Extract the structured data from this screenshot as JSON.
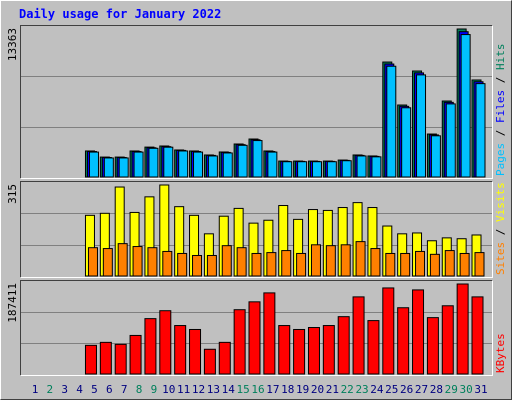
{
  "chart_data": {
    "type": "bar",
    "title": "Daily usage for January 2022",
    "categories": [
      "1",
      "2",
      "3",
      "4",
      "5",
      "6",
      "7",
      "8",
      "9",
      "10",
      "11",
      "12",
      "13",
      "14",
      "15",
      "16",
      "17",
      "18",
      "19",
      "20",
      "21",
      "22",
      "23",
      "24",
      "25",
      "26",
      "27",
      "28",
      "29",
      "30",
      "31"
    ],
    "highlight_categories": [
      "2",
      "8",
      "9",
      "15",
      "16",
      "22",
      "23",
      "29",
      "30"
    ],
    "highlight_color": "#00805c",
    "category_color": "#000080",
    "legend_separator": " / ",
    "panels": [
      {
        "ylim": [
          0,
          13363
        ],
        "yticks": [
          13363
        ],
        "series": [
          {
            "name": "Pages",
            "color": "#00c0ff",
            "values": [
              0,
              0,
              0,
              0,
              2250,
              1720,
              1720,
              2250,
              2590,
              2690,
              2350,
              2250,
              1900,
              2170,
              2860,
              3290,
              2250,
              1380,
              1380,
              1380,
              1380,
              1470,
              1900,
              1820,
              10000,
              6250,
              9220,
              3720,
              6600,
              12860,
              8430
            ]
          },
          {
            "name": "Files",
            "color": "#0000ff",
            "values": [
              0,
              0,
              0,
              0,
              2300,
              1760,
              1760,
              2300,
              2640,
              2740,
              2400,
              2300,
              1950,
              2220,
              2920,
              3360,
              2300,
              1410,
              1410,
              1410,
              1410,
              1500,
              1950,
              1860,
              10200,
              6380,
              9400,
              3800,
              6740,
              13120,
              8600
            ]
          },
          {
            "name": "Hits",
            "color": "#00805c",
            "values": [
              0,
              0,
              0,
              0,
              2350,
              1800,
              1800,
              2350,
              2700,
              2800,
              2440,
              2350,
              1990,
              2260,
              2980,
              3430,
              2350,
              1440,
              1440,
              1440,
              1440,
              1530,
              1990,
              1900,
              10380,
              6500,
              9570,
              3880,
              6860,
              13363,
              8760
            ]
          }
        ]
      },
      {
        "ylim": [
          0,
          315
        ],
        "yticks": [
          315
        ],
        "series": [
          {
            "name": "Sites",
            "color": "#ff8000",
            "values": [
              0,
              0,
              0,
              0,
              98,
              95,
              112,
              102,
              98,
              85,
              78,
              71,
              71,
              105,
              98,
              78,
              81,
              88,
              78,
              108,
              105,
              108,
              119,
              95,
              78,
              78,
              85,
              75,
              88,
              78,
              81
            ]
          },
          {
            "name": "Visits",
            "color": "#ffff00",
            "values": [
              0,
              0,
              0,
              0,
              210,
              217,
              308,
              220,
              274,
              315,
              240,
              210,
              146,
              207,
              234,
              183,
              193,
              244,
              196,
              230,
              227,
              237,
              254,
              237,
              173,
              146,
              149,
              122,
              132,
              129,
              142
            ]
          }
        ]
      },
      {
        "ylim": [
          0,
          187411
        ],
        "yticks": [
          187411
        ],
        "series": [
          {
            "name": "KBytes",
            "color": "#ff0000",
            "values": [
              0,
              0,
              0,
              0,
              59700,
              65900,
              61800,
              80300,
              115300,
              131800,
              100900,
              92700,
              51500,
              65900,
              133900,
              150300,
              168900,
              100900,
              92700,
              96800,
              100900,
              119400,
              160600,
              111200,
              179200,
              138000,
              175100,
              117400,
              142100,
              187411,
              160600
            ]
          }
        ]
      }
    ]
  }
}
